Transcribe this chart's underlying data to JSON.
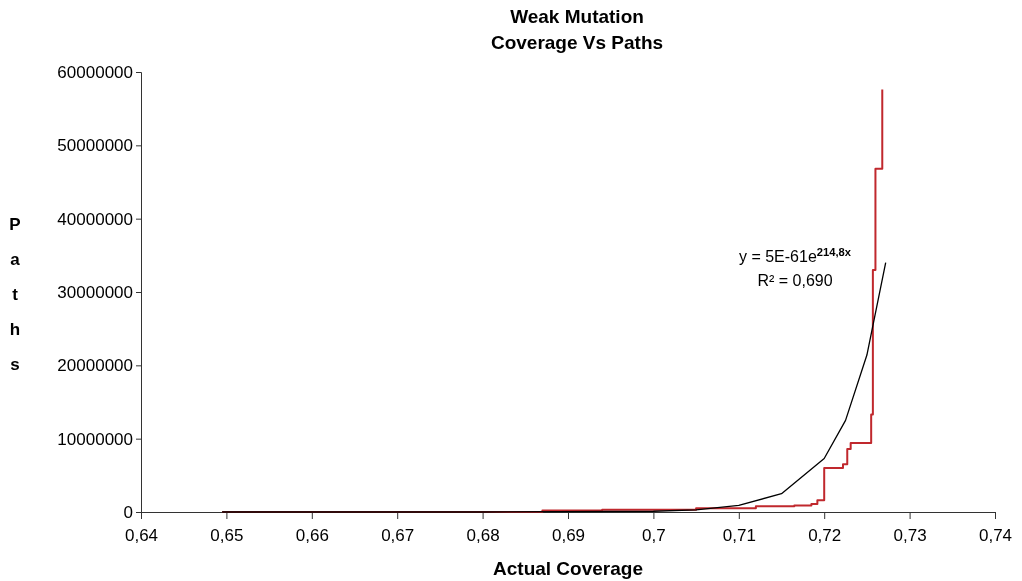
{
  "chart_data": {
    "type": "step",
    "title": "Weak Mutation\nCoverage Vs Paths",
    "xlabel": "Actual Coverage",
    "ylabel": "Paths",
    "xlim": [
      0.64,
      0.74
    ],
    "xticks": [
      {
        "value": 0.64,
        "label": "0,64"
      },
      {
        "value": 0.65,
        "label": "0,65"
      },
      {
        "value": 0.66,
        "label": "0,66"
      },
      {
        "value": 0.67,
        "label": "0,67"
      },
      {
        "value": 0.68,
        "label": "0,68"
      },
      {
        "value": 0.69,
        "label": "0,69"
      },
      {
        "value": 0.7,
        "label": "0,7"
      },
      {
        "value": 0.71,
        "label": "0,71"
      },
      {
        "value": 0.72,
        "label": "0,72"
      },
      {
        "value": 0.73,
        "label": "0,73"
      },
      {
        "value": 0.74,
        "label": "0,74"
      }
    ],
    "ylim": [
      0,
      60000000
    ],
    "yticks": [
      0,
      10000000,
      20000000,
      30000000,
      40000000,
      50000000,
      60000000
    ],
    "grid": false,
    "marker": "none",
    "series": [
      {
        "color": "#c0282d",
        "x": [
          0.6495,
          0.687,
          0.694,
          0.705,
          0.712,
          0.7165,
          0.7185,
          0.7192,
          0.72,
          0.7222,
          0.7227,
          0.7231,
          0.7255,
          0.7257,
          0.726,
          0.7268
        ],
        "values": [
          0,
          200000,
          300000,
          500000,
          800000,
          900000,
          1100000,
          1600000,
          6000000,
          6500000,
          8600000,
          9400000,
          13300000,
          33000000,
          46800000,
          57600000
        ]
      },
      {
        "type": "line",
        "color": "#000000",
        "x": [
          0.6495,
          0.68,
          0.7,
          0.705,
          0.71,
          0.715,
          0.72,
          0.7225,
          0.725,
          0.7272
        ],
        "values": [
          0,
          0,
          100000,
          300000,
          900000,
          2500000,
          7300000,
          12500000,
          21400000,
          34000000
        ]
      }
    ],
    "annotations": [
      "y = 5E-61e$^{214,8x}$",
      "R² = 0,690"
    ]
  }
}
